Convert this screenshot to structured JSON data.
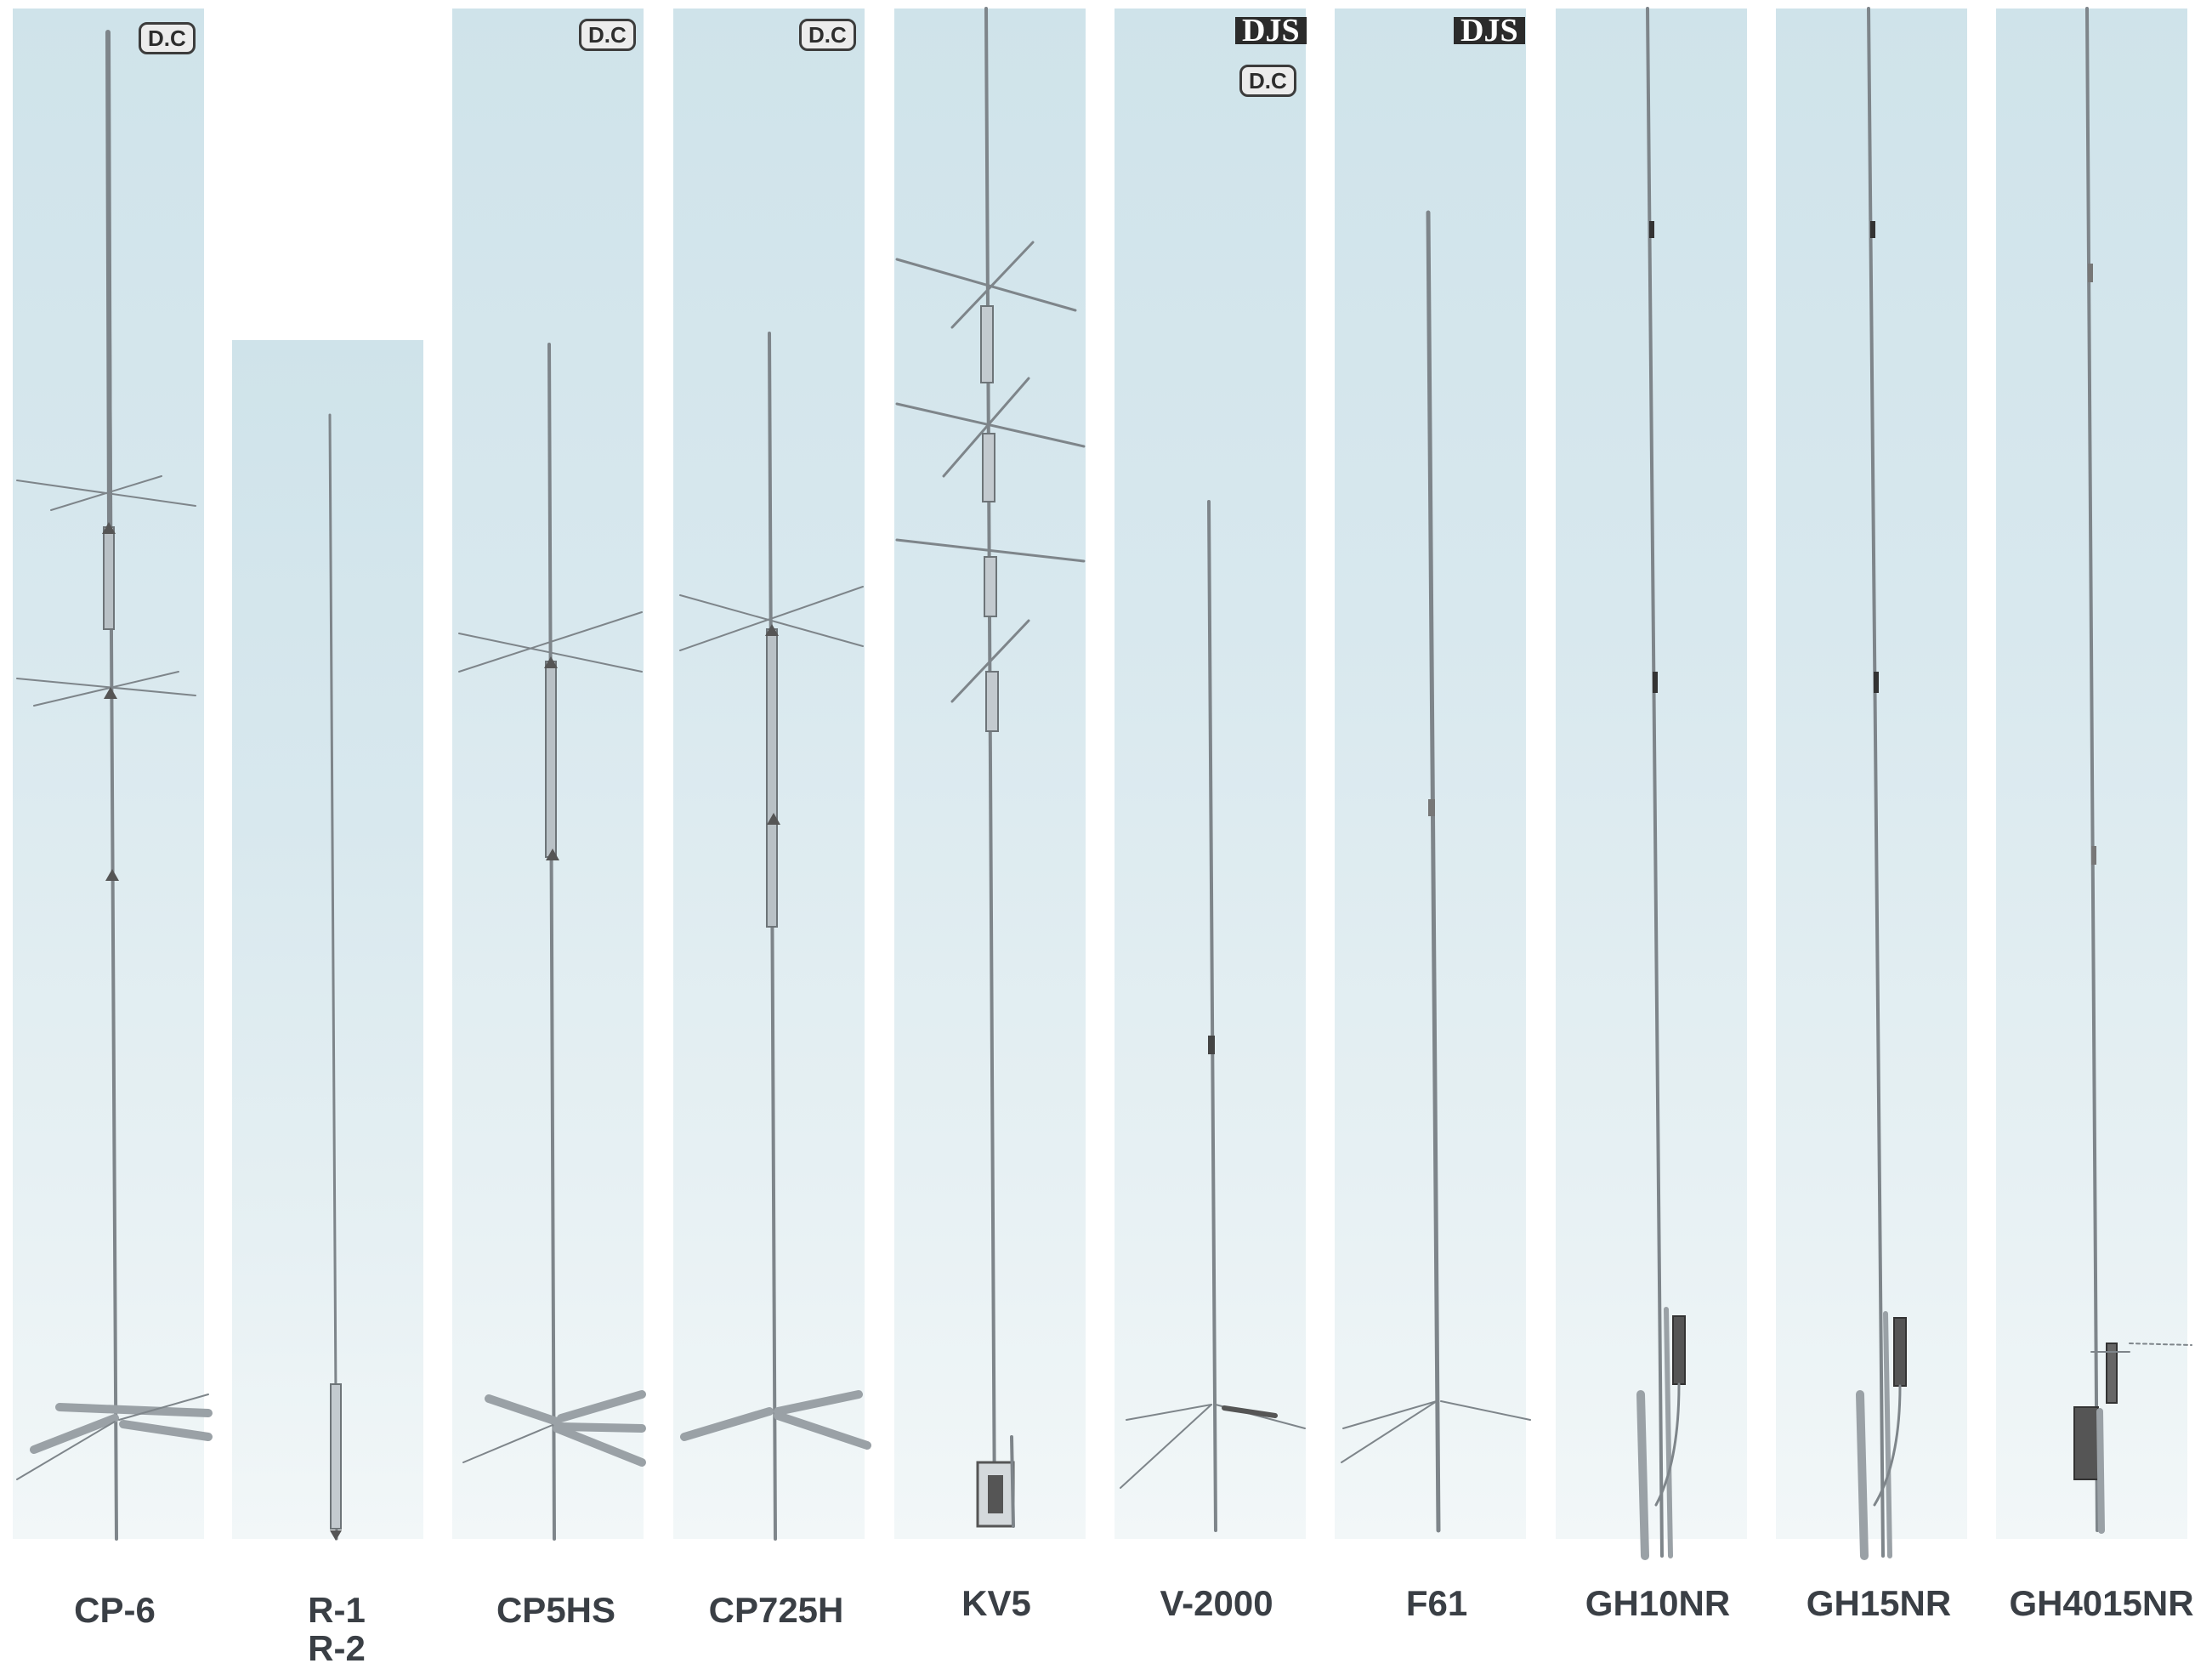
{
  "antennas": [
    {
      "id": "cp6",
      "label": "CP-6",
      "badge_dc": "D.C"
    },
    {
      "id": "r1r2",
      "label_line1": "R-1",
      "label_line2": "R-2"
    },
    {
      "id": "cp5hs",
      "label": "CP5HS",
      "badge_dc": "D.C"
    },
    {
      "id": "cp725h",
      "label": "CP725H",
      "badge_dc": "D.C"
    },
    {
      "id": "kv5",
      "label": "KV5"
    },
    {
      "id": "v2000",
      "label": "V-2000",
      "badge_djs": "DJS",
      "badge_dc": "D.C"
    },
    {
      "id": "f61",
      "label": "F61",
      "badge_djs": "DJS"
    },
    {
      "id": "gh10nr",
      "label": "GH10NR"
    },
    {
      "id": "gh15nr",
      "label": "GH15NR"
    },
    {
      "id": "gh4015nr",
      "label": "GH4015NR"
    }
  ],
  "colors": {
    "sky_top": "#cfe3ea",
    "sky_bottom": "#f2f7f8",
    "label_text": "#3a3f45",
    "pole": "#8a8f93"
  }
}
